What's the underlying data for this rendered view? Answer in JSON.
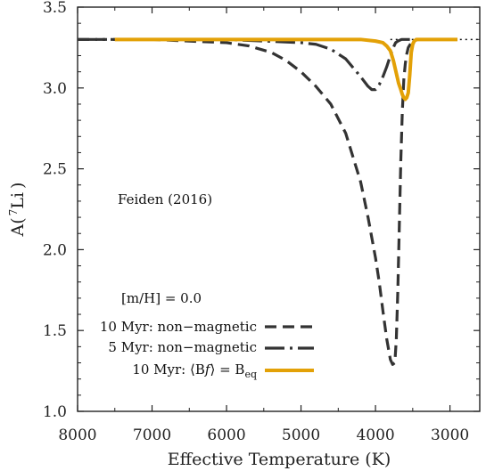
{
  "chart_data": {
    "type": "line",
    "title": "",
    "xlabel": "Effective Temperature (K)",
    "ylabel": "A( 7Li )",
    "ylabel_parts": {
      "prefix": "A(",
      "superscript": "7",
      "element": "Li",
      "suffix": ")"
    },
    "xlim": [
      8000,
      2600
    ],
    "x_reversed": true,
    "ylim": [
      1.0,
      3.5
    ],
    "xticks": [
      8000,
      7000,
      6000,
      5000,
      4000,
      3000
    ],
    "yticks": [
      1.0,
      1.5,
      2.0,
      2.5,
      3.0,
      3.5
    ],
    "ytick_labels": [
      "1.0",
      "1.5",
      "2.0",
      "2.5",
      "3.0",
      "3.5"
    ],
    "grid": false,
    "legend_placement": "bottom-left",
    "annotation_source": "Feiden (2016)",
    "annotation_metallicity": "[m/H] = 0.0",
    "colors": {
      "axis": "#222222",
      "dark": "#333333",
      "magnetic": "#e3a107"
    },
    "series": [
      {
        "name": "10 Myr: non−magnetic",
        "style": "dashed",
        "color": "#333333",
        "x": [
          8000,
          7500,
          7000,
          6500,
          6000,
          5700,
          5400,
          5200,
          5000,
          4800,
          4600,
          4400,
          4200,
          4100,
          4000,
          3950,
          3900,
          3850,
          3800,
          3770,
          3740,
          3720,
          3700,
          3680,
          3660,
          3640,
          3620,
          3600,
          3580,
          3560,
          3520,
          3480,
          3440,
          3400,
          3300,
          3100,
          2900
        ],
        "y": [
          3.3,
          3.3,
          3.3,
          3.29,
          3.28,
          3.26,
          3.22,
          3.17,
          3.1,
          3.01,
          2.9,
          2.72,
          2.42,
          2.2,
          1.95,
          1.8,
          1.62,
          1.45,
          1.32,
          1.29,
          1.3,
          1.45,
          1.75,
          2.15,
          2.55,
          2.85,
          3.05,
          3.15,
          3.21,
          3.25,
          3.28,
          3.29,
          3.3,
          3.3,
          3.3,
          3.3,
          3.3
        ]
      },
      {
        "name": "5 Myr: non−magnetic",
        "style": "dash-dot",
        "color": "#333333",
        "x": [
          8000,
          7500,
          7000,
          6500,
          6000,
          5500,
          5000,
          4800,
          4600,
          4400,
          4200,
          4100,
          4050,
          4000,
          3950,
          3900,
          3850,
          3800,
          3760,
          3730,
          3700,
          3650,
          3600,
          3500,
          3300
        ],
        "y": [
          3.3,
          3.3,
          3.3,
          3.3,
          3.3,
          3.29,
          3.28,
          3.27,
          3.24,
          3.18,
          3.07,
          3.01,
          2.99,
          2.99,
          3.02,
          3.07,
          3.13,
          3.2,
          3.25,
          3.28,
          3.29,
          3.3,
          3.3,
          3.3,
          3.3
        ]
      },
      {
        "name": "10 Myr: ⟨Bf⟩ = Beq",
        "legend_parts": {
          "prefix": "10 Myr: ⟨B",
          "italic": "f",
          "middle": "⟩ = B",
          "subscript": "eq"
        },
        "style": "solid",
        "color": "#e3a107",
        "x": [
          7500,
          7000,
          6500,
          6000,
          5500,
          5000,
          4500,
          4200,
          4000,
          3900,
          3850,
          3800,
          3760,
          3720,
          3690,
          3660,
          3640,
          3620,
          3600,
          3580,
          3560,
          3540,
          3520,
          3500,
          3480,
          3450,
          3400,
          3300,
          3100,
          2900
        ],
        "y": [
          3.3,
          3.3,
          3.3,
          3.3,
          3.3,
          3.3,
          3.3,
          3.3,
          3.29,
          3.28,
          3.26,
          3.23,
          3.17,
          3.09,
          3.03,
          2.99,
          2.96,
          2.94,
          2.93,
          2.94,
          2.97,
          3.08,
          3.22,
          3.27,
          3.29,
          3.3,
          3.3,
          3.3,
          3.3,
          3.3
        ]
      },
      {
        "name": "",
        "style": "dotted",
        "color": "#111111",
        "x": [
          3800,
          2600
        ],
        "y": [
          3.3,
          3.3
        ]
      }
    ]
  }
}
